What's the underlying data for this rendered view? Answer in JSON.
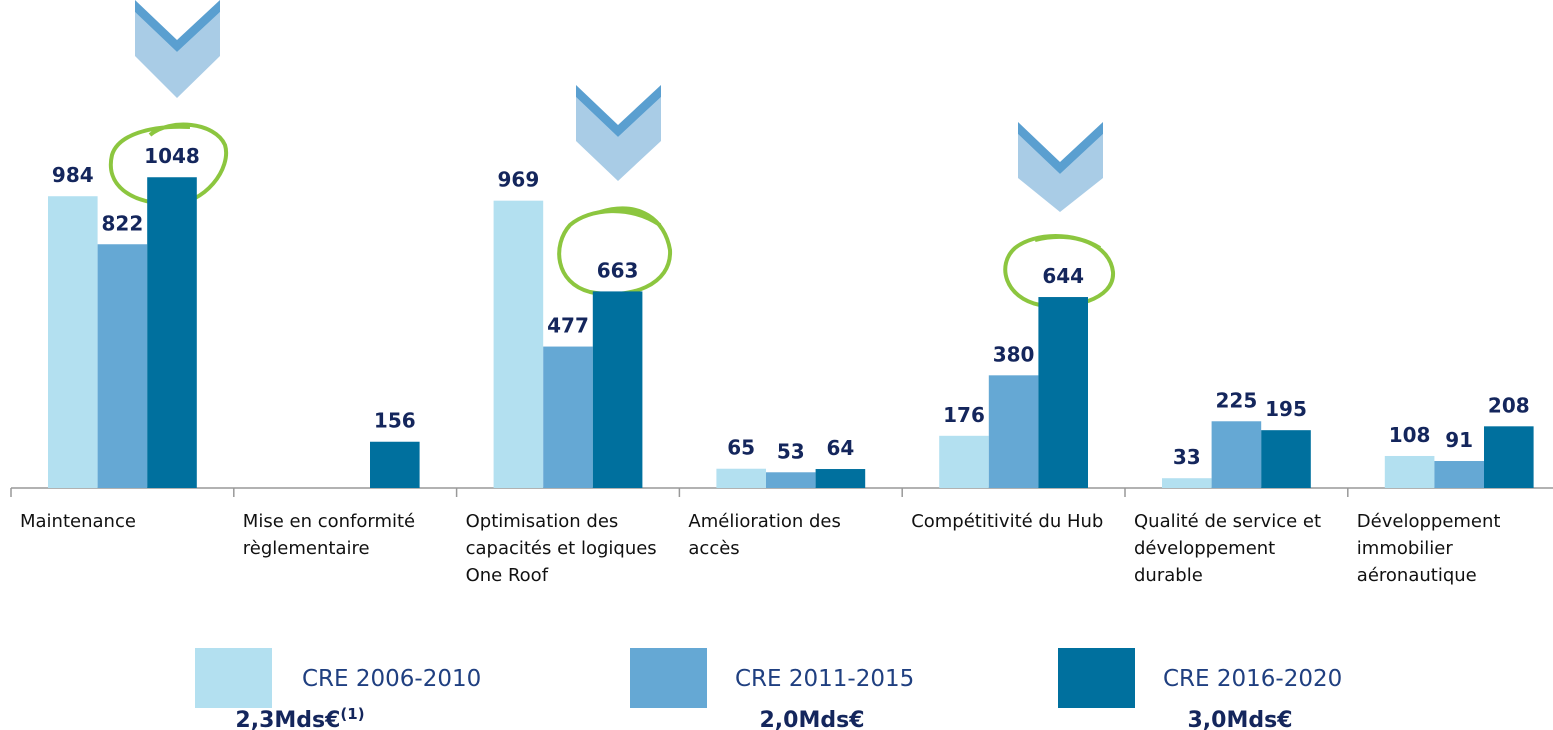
{
  "chart_data": {
    "type": "bar",
    "categories": [
      "Maintenance",
      "Mise en conformité règlementaire",
      "Optimisation des capacités et logiques One Roof",
      "Amélioration des accès",
      "Compétitivité du Hub",
      "Qualité de service et développement durable",
      "Développement immobilier aéronautique"
    ],
    "series": [
      {
        "name": "CRE 2006-2010",
        "color": "#b3e0f0",
        "total": "2,3Mds€",
        "footnote": "(1)",
        "values": [
          984,
          null,
          969,
          65,
          176,
          33,
          108
        ]
      },
      {
        "name": "CRE 2011-2015",
        "color": "#65a8d4",
        "total": "2,0Mds€",
        "values": [
          822,
          null,
          477,
          53,
          380,
          225,
          91
        ]
      },
      {
        "name": "CRE 2016-2020",
        "color": "#00709e",
        "total": "3,0Mds€",
        "values": [
          1048,
          156,
          663,
          64,
          644,
          195,
          208
        ]
      }
    ],
    "ylim": [
      0,
      1150
    ]
  }
}
